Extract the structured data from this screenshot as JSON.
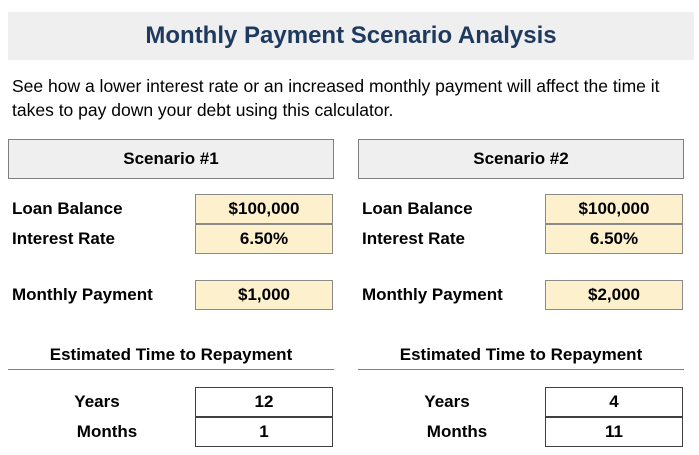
{
  "title": "Monthly Payment Scenario Analysis",
  "description": "See how a lower interest rate or an increased monthly payment will affect the time it takes to pay down your debt using this calculator.",
  "labels": {
    "loan_balance": "Loan Balance",
    "interest_rate": "Interest Rate",
    "monthly_payment": "Monthly Payment",
    "estimated_time": "Estimated Time to Repayment",
    "years": "Years",
    "months": "Months"
  },
  "scenarios": [
    {
      "title": "Scenario #1",
      "loan_balance": "$100,000",
      "interest_rate": "6.50%",
      "monthly_payment": "$1,000",
      "years": "12",
      "months": "1"
    },
    {
      "title": "Scenario #2",
      "loan_balance": "$100,000",
      "interest_rate": "6.50%",
      "monthly_payment": "$2,000",
      "years": "4",
      "months": "11"
    }
  ],
  "colors": {
    "title_text": "#1f3a5f",
    "header_bg": "#efefef",
    "input_bg": "#fdf0cc"
  }
}
